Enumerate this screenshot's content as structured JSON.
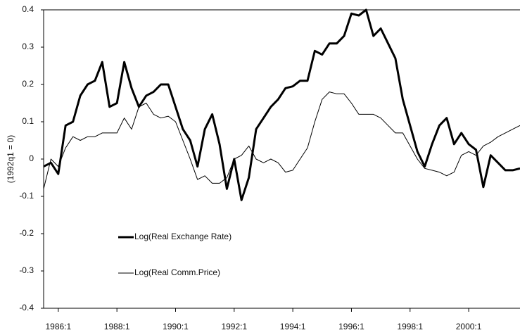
{
  "chart_data": {
    "type": "line",
    "y_label": "(1992q1 = 0)",
    "categories": [
      null,
      null,
      "1986:1",
      null,
      null,
      null,
      null,
      null,
      null,
      null,
      "1988:1",
      null,
      null,
      null,
      null,
      null,
      null,
      null,
      "1990:1",
      null,
      null,
      null,
      null,
      null,
      null,
      null,
      "1992:1",
      null,
      null,
      null,
      null,
      null,
      null,
      null,
      "1994:1",
      null,
      null,
      null,
      null,
      null,
      null,
      null,
      "1996:1",
      null,
      null,
      null,
      null,
      null,
      null,
      null,
      "1998:1",
      null,
      null,
      null,
      null,
      null,
      null,
      null,
      "2000:1",
      null,
      null,
      null,
      null,
      null,
      null,
      null
    ],
    "ylim": [
      -0.4,
      0.4
    ],
    "yticks": [
      -0.4,
      -0.3,
      -0.2,
      -0.1,
      0,
      0.1,
      0.2,
      0.3,
      0.4
    ],
    "grid": false,
    "series": [
      {
        "name": "Log(Real Exchange Rate)",
        "color": "#000000",
        "width": 3,
        "values": [
          -0.02,
          -0.01,
          -0.04,
          0.09,
          0.1,
          0.17,
          0.2,
          0.21,
          0.26,
          0.14,
          0.15,
          0.26,
          0.19,
          0.14,
          0.17,
          0.18,
          0.2,
          0.2,
          0.14,
          0.08,
          0.05,
          -0.02,
          0.08,
          0.12,
          0.04,
          -0.08,
          0.0,
          -0.11,
          -0.05,
          0.08,
          0.11,
          0.14,
          0.16,
          0.19,
          0.195,
          0.21,
          0.21,
          0.29,
          0.28,
          0.31,
          0.31,
          0.33,
          0.39,
          0.385,
          0.4,
          0.33,
          0.35,
          0.31,
          0.27,
          0.16,
          0.09,
          0.02,
          -0.02,
          0.04,
          0.09,
          0.11,
          0.04,
          0.07,
          0.04,
          0.025,
          -0.075,
          0.01,
          -0.01,
          -0.03,
          -0.03,
          -0.025
        ]
      },
      {
        "name": "Log(Real Comm.Price)",
        "color": "#000000",
        "width": 1,
        "values": [
          -0.08,
          0.0,
          -0.02,
          0.03,
          0.06,
          0.05,
          0.06,
          0.06,
          0.07,
          0.07,
          0.07,
          0.11,
          0.08,
          0.14,
          0.15,
          0.12,
          0.11,
          0.115,
          0.1,
          0.05,
          0.0,
          -0.055,
          -0.045,
          -0.065,
          -0.065,
          -0.05,
          0.0,
          0.01,
          0.035,
          0.0,
          -0.01,
          0.0,
          -0.01,
          -0.035,
          -0.03,
          0.0,
          0.03,
          0.1,
          0.16,
          0.18,
          0.175,
          0.175,
          0.15,
          0.12,
          0.12,
          0.12,
          0.11,
          0.09,
          0.07,
          0.07,
          0.035,
          0.0,
          -0.025,
          -0.03,
          -0.035,
          -0.045,
          -0.035,
          0.01,
          0.02,
          0.01,
          0.035,
          0.045,
          0.06,
          0.07,
          0.08,
          0.09
        ]
      }
    ]
  }
}
